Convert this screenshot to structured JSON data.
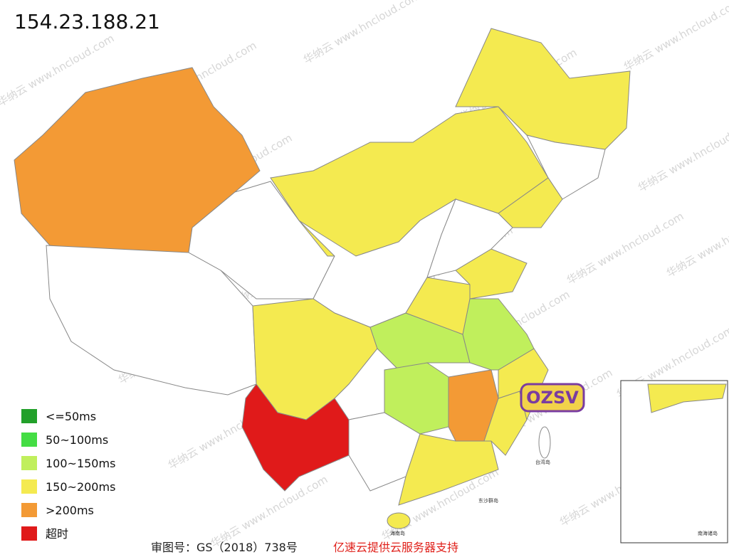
{
  "title": "154.23.188.21",
  "legend": [
    {
      "label": "<=50ms",
      "color": "#22a02a"
    },
    {
      "label": "50~100ms",
      "color": "#44dd44"
    },
    {
      "label": "100~150ms",
      "color": "#c0ef5c"
    },
    {
      "label": "150~200ms",
      "color": "#f4ea50"
    },
    {
      "label": ">200ms",
      "color": "#f39a35"
    },
    {
      "label": "超时",
      "color": "#e01a1a"
    }
  ],
  "footer": {
    "approval": "审图号：GS（2018）738号",
    "support": "亿速云提供云服务器支持"
  },
  "watermark": "华纳云 www.hncloud.com",
  "sticker": "OZSV",
  "map_labels": {
    "south_sea": "南海诸岛",
    "taiwan": "台湾岛",
    "hainan": "海南岛",
    "dongsha": "东沙群岛"
  }
}
